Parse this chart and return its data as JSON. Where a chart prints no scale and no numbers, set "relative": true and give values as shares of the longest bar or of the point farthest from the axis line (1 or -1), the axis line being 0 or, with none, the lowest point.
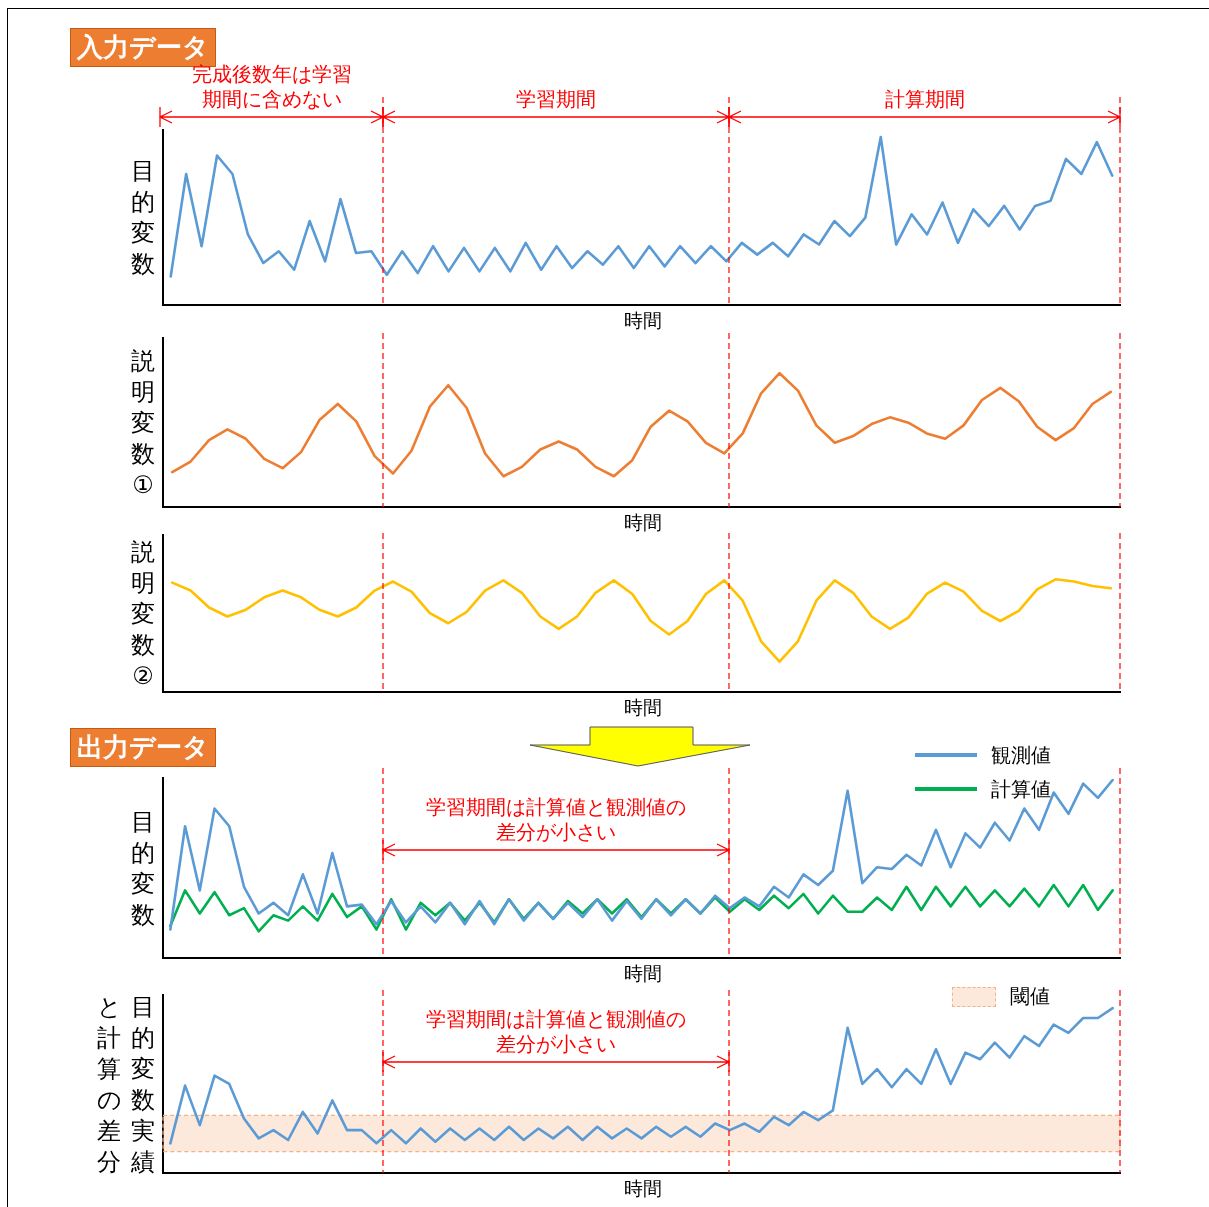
{
  "chart_data": [
    {
      "type": "line",
      "title": "入力データ",
      "ylabel": "目的変数",
      "xlabel": "時間",
      "relative": true,
      "line_style": "solid",
      "categories": [
        null,
        null,
        null,
        null,
        null,
        null,
        null,
        null,
        null,
        null,
        null,
        null,
        null,
        null,
        null,
        null,
        null,
        null,
        null,
        null,
        null,
        null,
        null,
        null,
        null,
        null,
        null,
        null,
        null,
        null,
        null,
        null,
        null,
        null,
        null,
        null,
        null,
        null,
        null,
        null,
        null,
        null,
        null,
        null,
        null,
        null,
        null,
        null,
        null,
        null,
        null,
        null,
        null,
        null,
        null,
        null,
        null,
        null,
        null,
        null,
        null,
        null
      ],
      "series": [
        {
          "color": "#5b9bd5",
          "values": [
            0.17,
            0.78,
            0.35,
            0.89,
            0.78,
            0.42,
            0.25,
            0.32,
            0.21,
            0.5,
            0.26,
            0.63,
            0.31,
            0.32,
            0.18,
            0.32,
            0.19,
            0.35,
            0.2,
            0.34,
            0.2,
            0.34,
            0.2,
            0.37,
            0.21,
            0.35,
            0.22,
            0.32,
            0.24,
            0.35,
            0.22,
            0.35,
            0.23,
            0.35,
            0.25,
            0.35,
            0.26,
            0.37,
            0.3,
            0.37,
            0.29,
            0.42,
            0.36,
            0.5,
            0.41,
            0.52,
            1,
            0.36,
            0.54,
            0.42,
            0.61,
            0.37,
            0.57,
            0.47,
            0.59,
            0.45,
            0.59,
            0.62,
            0.87,
            0.78,
            0.97,
            0.77
          ]
        }
      ],
      "annotations": [
        "完成後数年は学習期間に含めない",
        "学習期間",
        "計算期間"
      ]
    },
    {
      "type": "line",
      "ylabel": "説明変数①",
      "xlabel": "時間",
      "relative": true,
      "line_style": "solid",
      "categories": [
        null,
        null,
        null,
        null,
        null,
        null,
        null,
        null,
        null,
        null,
        null,
        null,
        null,
        null,
        null,
        null,
        null,
        null,
        null,
        null,
        null,
        null,
        null,
        null,
        null,
        null,
        null,
        null,
        null,
        null,
        null,
        null,
        null,
        null,
        null,
        null,
        null,
        null,
        null,
        null,
        null,
        null,
        null,
        null,
        null,
        null,
        null,
        null,
        null,
        null,
        null,
        null
      ],
      "series": [
        {
          "color": "#ed7d31",
          "values": [
            0.26,
            0.34,
            0.5,
            0.58,
            0.51,
            0.36,
            0.29,
            0.41,
            0.65,
            0.77,
            0.64,
            0.38,
            0.25,
            0.42,
            0.75,
            0.91,
            0.74,
            0.4,
            0.23,
            0.3,
            0.43,
            0.49,
            0.43,
            0.3,
            0.23,
            0.35,
            0.6,
            0.72,
            0.64,
            0.48,
            0.4,
            0.55,
            0.85,
            1,
            0.87,
            0.61,
            0.48,
            0.53,
            0.62,
            0.67,
            0.63,
            0.55,
            0.51,
            0.61,
            0.8,
            0.89,
            0.79,
            0.6,
            0.5,
            0.59,
            0.77,
            0.86
          ]
        }
      ]
    },
    {
      "type": "line",
      "ylabel": "説明変数②",
      "xlabel": "時間",
      "relative": true,
      "line_style": "solid",
      "categories": [
        null,
        null,
        null,
        null,
        null,
        null,
        null,
        null,
        null,
        null,
        null,
        null,
        null,
        null,
        null,
        null,
        null,
        null,
        null,
        null,
        null,
        null,
        null,
        null,
        null,
        null,
        null,
        null,
        null,
        null,
        null,
        null,
        null,
        null,
        null,
        null,
        null,
        null,
        null,
        null,
        null,
        null,
        null,
        null,
        null,
        null,
        null,
        null,
        null,
        null,
        null,
        null
      ],
      "series": [
        {
          "color": "#ffc000",
          "values": [
            0.97,
            0.9,
            0.75,
            0.67,
            0.73,
            0.84,
            0.9,
            0.84,
            0.73,
            0.67,
            0.75,
            0.9,
            0.98,
            0.89,
            0.7,
            0.61,
            0.71,
            0.9,
            0.99,
            0.88,
            0.67,
            0.56,
            0.67,
            0.88,
            0.99,
            0.87,
            0.63,
            0.51,
            0.63,
            0.87,
            0.99,
            0.81,
            0.45,
            0.27,
            0.45,
            0.81,
            0.99,
            0.88,
            0.67,
            0.56,
            0.66,
            0.87,
            0.97,
            0.89,
            0.72,
            0.63,
            0.72,
            0.91,
            1,
            0.98,
            0.94,
            0.92
          ]
        }
      ]
    },
    {
      "type": "line",
      "title": "出力データ",
      "ylabel": "目的変数",
      "xlabel": "時間",
      "relative": true,
      "line_style": "solid",
      "legend": "top right",
      "categories": [
        null,
        null,
        null,
        null,
        null,
        null,
        null,
        null,
        null,
        null,
        null,
        null,
        null,
        null,
        null,
        null,
        null,
        null,
        null,
        null,
        null,
        null,
        null,
        null,
        null,
        null,
        null,
        null,
        null,
        null,
        null,
        null,
        null,
        null,
        null,
        null,
        null,
        null,
        null,
        null,
        null,
        null,
        null,
        null,
        null,
        null,
        null,
        null,
        null,
        null,
        null,
        null,
        null,
        null,
        null,
        null,
        null,
        null,
        null,
        null,
        null,
        null,
        null,
        null,
        null
      ],
      "series": [
        {
          "name": "観測値",
          "color": "#5b9bd5",
          "values": [
            0.16,
            0.74,
            0.38,
            0.84,
            0.74,
            0.4,
            0.25,
            0.31,
            0.24,
            0.47,
            0.25,
            0.59,
            0.29,
            0.3,
            0.19,
            0.32,
            0.2,
            0.29,
            0.2,
            0.31,
            0.19,
            0.32,
            0.19,
            0.33,
            0.21,
            0.31,
            0.22,
            0.31,
            0.23,
            0.33,
            0.21,
            0.32,
            0.22,
            0.33,
            0.24,
            0.33,
            0.25,
            0.35,
            0.28,
            0.34,
            0.29,
            0.4,
            0.34,
            0.47,
            0.41,
            0.49,
            0.94,
            0.42,
            0.51,
            0.5,
            0.58,
            0.52,
            0.72,
            0.51,
            0.7,
            0.62,
            0.76,
            0.66,
            0.84,
            0.72,
            0.93,
            0.81,
            0.98,
            0.9,
            1
          ]
        },
        {
          "name": "計算値",
          "color": "#00b050",
          "values": [
            0.18,
            0.38,
            0.25,
            0.37,
            0.24,
            0.28,
            0.15,
            0.24,
            0.21,
            0.29,
            0.21,
            0.36,
            0.23,
            0.29,
            0.16,
            0.33,
            0.16,
            0.31,
            0.24,
            0.31,
            0.21,
            0.31,
            0.2,
            0.33,
            0.22,
            0.31,
            0.22,
            0.32,
            0.25,
            0.33,
            0.25,
            0.33,
            0.23,
            0.33,
            0.25,
            0.33,
            0.25,
            0.34,
            0.26,
            0.33,
            0.27,
            0.35,
            0.28,
            0.36,
            0.25,
            0.35,
            0.26,
            0.26,
            0.34,
            0.27,
            0.4,
            0.27,
            0.4,
            0.29,
            0.4,
            0.29,
            0.38,
            0.29,
            0.39,
            0.29,
            0.41,
            0.29,
            0.41,
            0.27,
            0.38
          ]
        }
      ],
      "annotations": [
        "学習期間は計算値と観測値の差分が小さい"
      ]
    },
    {
      "type": "line",
      "ylabel": "目的変数実績と計算の差分",
      "xlabel": "時間",
      "relative": true,
      "line_style": "solid",
      "categories": [
        null,
        null,
        null,
        null,
        null,
        null,
        null,
        null,
        null,
        null,
        null,
        null,
        null,
        null,
        null,
        null,
        null,
        null,
        null,
        null,
        null,
        null,
        null,
        null,
        null,
        null,
        null,
        null,
        null,
        null,
        null,
        null,
        null,
        null,
        null,
        null,
        null,
        null,
        null,
        null,
        null,
        null,
        null,
        null,
        null,
        null,
        null,
        null,
        null,
        null,
        null,
        null,
        null,
        null,
        null,
        null,
        null,
        null,
        null,
        null,
        null,
        null,
        null,
        null,
        null
      ],
      "series": [
        {
          "color": "#5b9bd5",
          "values": [
            0.18,
            0.53,
            0.29,
            0.59,
            0.54,
            0.33,
            0.21,
            0.26,
            0.2,
            0.37,
            0.24,
            0.44,
            0.26,
            0.26,
            0.18,
            0.26,
            0.18,
            0.27,
            0.19,
            0.27,
            0.2,
            0.27,
            0.2,
            0.28,
            0.2,
            0.27,
            0.21,
            0.28,
            0.2,
            0.28,
            0.21,
            0.27,
            0.21,
            0.28,
            0.22,
            0.28,
            0.22,
            0.3,
            0.26,
            0.3,
            0.25,
            0.34,
            0.29,
            0.37,
            0.32,
            0.38,
            0.88,
            0.54,
            0.63,
            0.52,
            0.63,
            0.54,
            0.75,
            0.54,
            0.73,
            0.69,
            0.79,
            0.7,
            0.83,
            0.77,
            0.9,
            0.85,
            0.94,
            0.94,
            1
          ]
        }
      ],
      "bands": [
        {
          "axis": "y",
          "from": 0.13,
          "to": 0.35,
          "label": "閾値",
          "color": "#f4b183"
        }
      ],
      "annotations": [
        "学習期間は計算値と観測値の差分が小さい"
      ]
    }
  ]
}
